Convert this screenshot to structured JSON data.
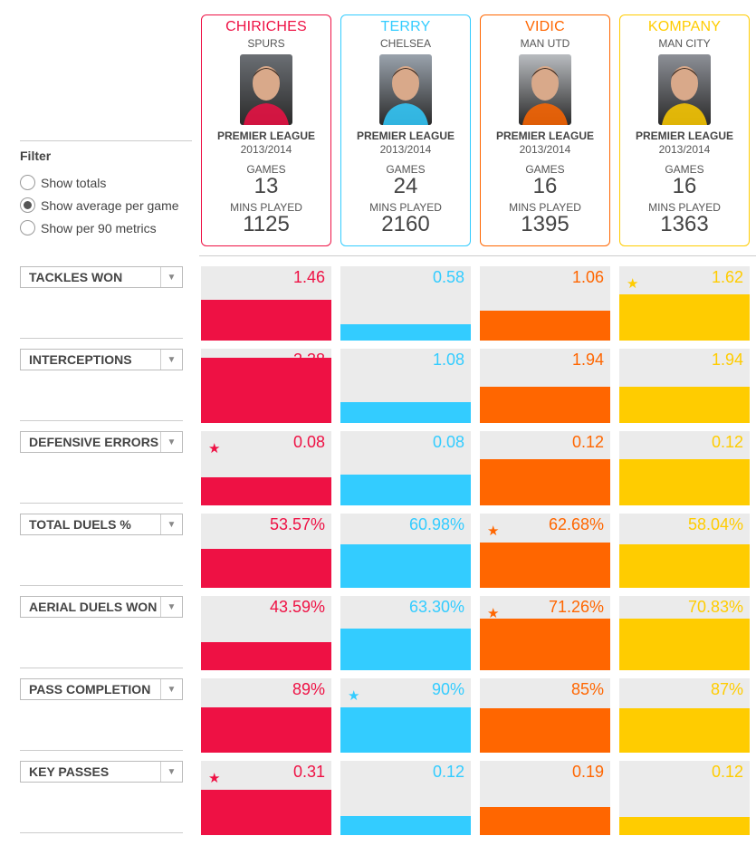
{
  "colors": {
    "chiriches": "#ee1144",
    "terry": "#33ccff",
    "vidic": "#ff6600",
    "kompany": "#ffcc00"
  },
  "filter": {
    "title": "Filter",
    "options": [
      {
        "label": "Show totals",
        "selected": false
      },
      {
        "label": "Show average per game",
        "selected": true
      },
      {
        "label": "Show per 90 metrics",
        "selected": false
      }
    ]
  },
  "players": [
    {
      "name": "CHIRICHES",
      "team": "SPURS",
      "league": "PREMIER LEAGUE",
      "season": "2013/2014",
      "games_label": "GAMES",
      "games": "13",
      "mins_label": "MINS PLAYED",
      "mins": "1125",
      "color": "#ee1144",
      "photo_bg": "#6b6f74"
    },
    {
      "name": "TERRY",
      "team": "CHELSEA",
      "league": "PREMIER LEAGUE",
      "season": "2013/2014",
      "games_label": "GAMES",
      "games": "24",
      "mins_label": "MINS PLAYED",
      "mins": "2160",
      "color": "#33ccff",
      "photo_bg": "#9aa3ad"
    },
    {
      "name": "VIDIC",
      "team": "MAN UTD",
      "league": "PREMIER LEAGUE",
      "season": "2013/2014",
      "games_label": "GAMES",
      "games": "16",
      "mins_label": "MINS PLAYED",
      "mins": "1395",
      "color": "#ff6600",
      "photo_bg": "#b9bcc0"
    },
    {
      "name": "KOMPANY",
      "team": "MAN CITY",
      "league": "PREMIER LEAGUE",
      "season": "2013/2014",
      "games_label": "GAMES",
      "games": "16",
      "mins_label": "MINS PLAYED",
      "mins": "1363",
      "color": "#ffcc00",
      "photo_bg": "#8d9097"
    }
  ],
  "metrics": [
    {
      "label": "TACKLES WON",
      "values": [
        "1.46",
        "0.58",
        "1.06",
        "1.62"
      ],
      "fill": [
        0.55,
        0.22,
        0.4,
        0.62
      ],
      "best": 3
    },
    {
      "label": "INTERCEPTIONS",
      "values": [
        "2.38",
        "1.08",
        "1.94",
        "1.94"
      ],
      "fill": [
        0.88,
        0.28,
        0.49,
        0.49
      ],
      "best": 0
    },
    {
      "label": "DEFENSIVE ERRORS",
      "values": [
        "0.08",
        "0.08",
        "0.12",
        "0.12"
      ],
      "fill": [
        0.38,
        0.41,
        0.62,
        0.62
      ],
      "best": 0
    },
    {
      "label": "TOTAL DUELS %",
      "values": [
        "53.57%",
        "60.98%",
        "62.68%",
        "58.04%"
      ],
      "fill": [
        0.53,
        0.58,
        0.61,
        0.59
      ],
      "best": 2
    },
    {
      "label": "AERIAL DUELS WON",
      "values": [
        "43.59%",
        "63.30%",
        "71.26%",
        "70.83%"
      ],
      "fill": [
        0.38,
        0.56,
        0.69,
        0.69
      ],
      "best": 2
    },
    {
      "label": "PASS COMPLETION",
      "values": [
        "89%",
        "90%",
        "85%",
        "87%"
      ],
      "fill": [
        0.61,
        0.61,
        0.6,
        0.6
      ],
      "best": 1
    },
    {
      "label": "KEY PASSES",
      "values": [
        "0.31",
        "0.12",
        "0.19",
        "0.12"
      ],
      "fill": [
        0.61,
        0.26,
        0.38,
        0.24
      ],
      "best": 0
    }
  ],
  "icons": {
    "dropdown": "chevron-down-icon",
    "best": "star-icon",
    "arrow_glyph": "▼",
    "star_glyph": "★"
  }
}
